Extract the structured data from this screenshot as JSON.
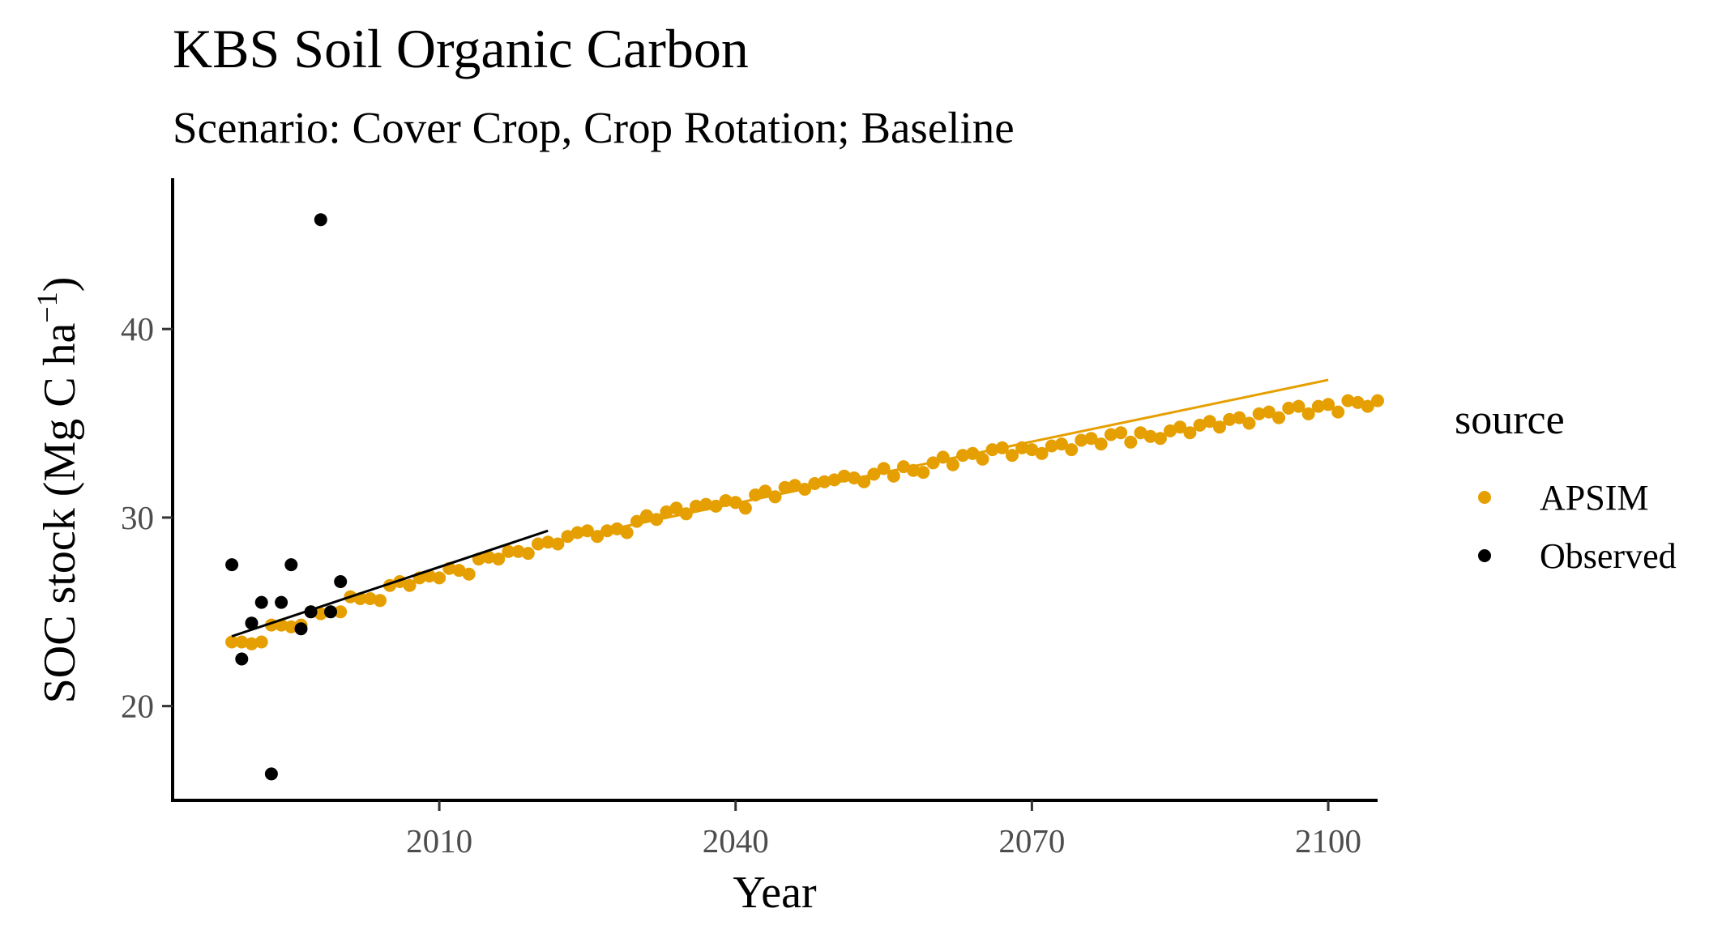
{
  "chart_data": {
    "type": "scatter",
    "title": "KBS Soil Organic Carbon",
    "subtitle": "Scenario: Cover Crop, Crop Rotation; Baseline",
    "xlabel": "Year",
    "ylabel_main": "SOC stock (Mg C ha",
    "ylabel_sup": "−1",
    "ylabel_close": ")",
    "xlim": [
      1983,
      2105
    ],
    "ylim": [
      15,
      48
    ],
    "x_ticks": [
      2010,
      2040,
      2070,
      2100
    ],
    "y_ticks": [
      20,
      30,
      40
    ],
    "grid": false,
    "legend": {
      "title": "source",
      "position": "right",
      "entries": [
        {
          "label": "APSIM",
          "color": "#E69F00"
        },
        {
          "label": "Observed",
          "color": "#000000"
        }
      ]
    },
    "series": [
      {
        "name": "APSIM",
        "color": "#E69F00",
        "start_year": 1989,
        "values": [
          23.4,
          23.4,
          23.3,
          23.4,
          24.3,
          24.3,
          24.2,
          24.3,
          25.0,
          24.9,
          25.0,
          25.0,
          25.8,
          25.7,
          25.7,
          25.6,
          26.4,
          26.6,
          26.4,
          26.8,
          26.9,
          26.8,
          27.3,
          27.2,
          27.0,
          27.8,
          27.9,
          27.8,
          28.2,
          28.2,
          28.1,
          28.6,
          28.7,
          28.6,
          29.0,
          29.2,
          29.3,
          29.0,
          29.3,
          29.4,
          29.2,
          29.8,
          30.1,
          29.9,
          30.3,
          30.5,
          30.2,
          30.6,
          30.7,
          30.6,
          30.9,
          30.8,
          30.5,
          31.2,
          31.4,
          31.1,
          31.6,
          31.7,
          31.5,
          31.8,
          31.9,
          32.0,
          32.2,
          32.1,
          31.9,
          32.3,
          32.6,
          32.2,
          32.7,
          32.5,
          32.4,
          32.9,
          33.2,
          32.8,
          33.3,
          33.4,
          33.1,
          33.6,
          33.7,
          33.3,
          33.7,
          33.6,
          33.4,
          33.8,
          33.9,
          33.6,
          34.1,
          34.2,
          33.9,
          34.4,
          34.5,
          34.0,
          34.5,
          34.3,
          34.2,
          34.6,
          34.8,
          34.5,
          34.9,
          35.1,
          34.8,
          35.2,
          35.3,
          35.0,
          35.5,
          35.6,
          35.3,
          35.8,
          35.9,
          35.5,
          35.9,
          36.0,
          35.6,
          36.2,
          36.1,
          35.9,
          36.2
        ]
      },
      {
        "name": "Observed",
        "color": "#000000",
        "x": [
          1989,
          1990,
          1991,
          1992,
          1993,
          1994,
          1995,
          1996,
          1997,
          1998,
          1999,
          2000
        ],
        "y": [
          27.5,
          22.5,
          24.4,
          25.5,
          16.4,
          25.5,
          27.5,
          24.1,
          25.0,
          45.8,
          25.0,
          26.6
        ]
      }
    ],
    "trend_lines": [
      {
        "series": "APSIM",
        "color": "#E69F00",
        "x": [
          2023,
          2100
        ],
        "y": [
          28.9,
          37.3
        ]
      },
      {
        "series": "Observed",
        "color": "#000000",
        "x": [
          1989,
          2021
        ],
        "y": [
          23.7,
          29.3
        ]
      }
    ]
  }
}
